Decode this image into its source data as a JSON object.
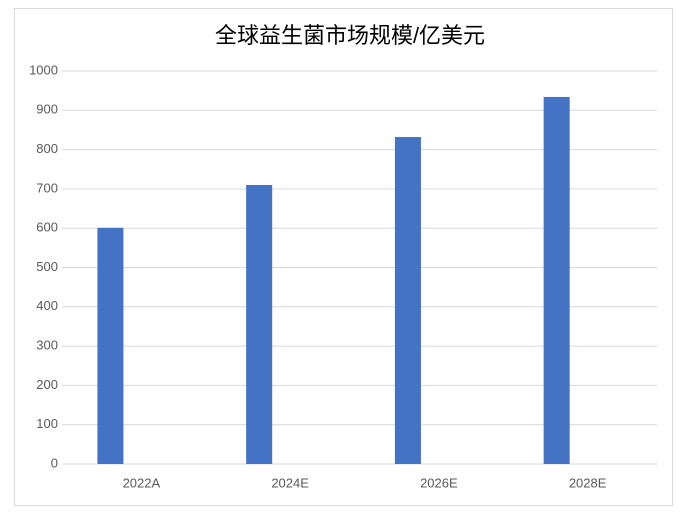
{
  "chart_data": {
    "type": "bar",
    "title": "全球益生菌市场规模/亿美元",
    "categories": [
      "2022A",
      "2024E",
      "2026E",
      "2028E"
    ],
    "values": [
      601,
      710,
      832,
      934
    ],
    "color": "#4472c4",
    "ylim": [
      0,
      1000
    ],
    "yticks": [
      0,
      100,
      200,
      300,
      400,
      500,
      600,
      700,
      800,
      900,
      1000
    ],
    "grid": true
  }
}
